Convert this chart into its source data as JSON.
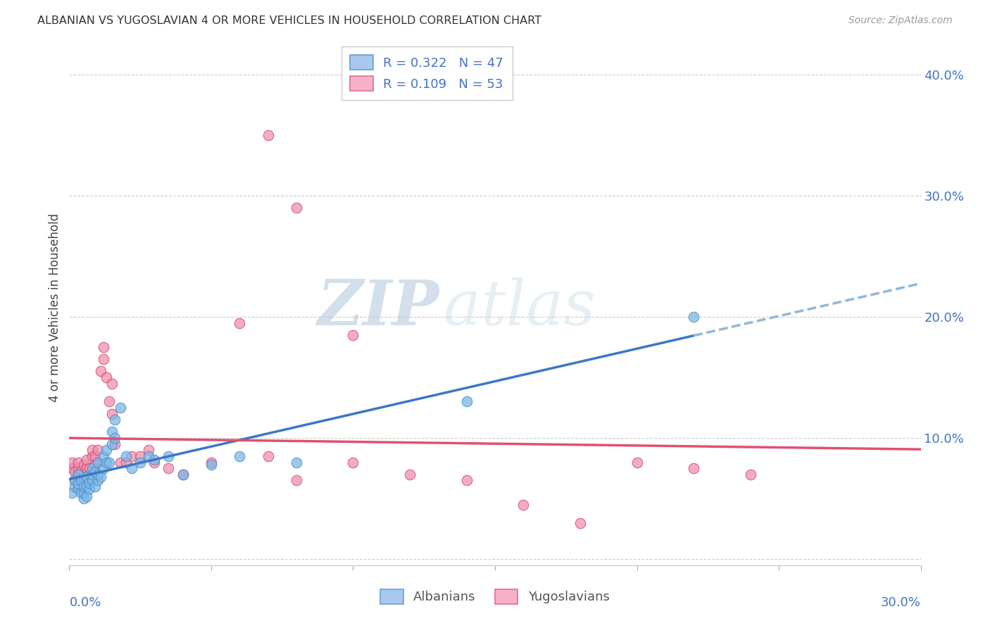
{
  "title": "ALBANIAN VS YUGOSLAVIAN 4 OR MORE VEHICLES IN HOUSEHOLD CORRELATION CHART",
  "source": "Source: ZipAtlas.com",
  "ylabel": "4 or more Vehicles in Household",
  "xlim": [
    0.0,
    0.3
  ],
  "ylim": [
    -0.005,
    0.42
  ],
  "watermark_zip": "ZIP",
  "watermark_atlas": "atlas",
  "albanians_color": "#7ab8e8",
  "albanians_edge": "#4a88c0",
  "yugoslavians_color": "#f090b0",
  "yugoslavians_edge": "#d04060",
  "albanian_line_color": "#3a78c8",
  "yugoslavian_line_color": "#e05070",
  "albanian_dash_color": "#90b8d8",
  "grid_color": "#cccccc",
  "right_tick_color": "#4472c4",
  "albanians_x": [
    0.001,
    0.002,
    0.002,
    0.003,
    0.003,
    0.003,
    0.004,
    0.004,
    0.005,
    0.005,
    0.005,
    0.006,
    0.006,
    0.006,
    0.007,
    0.007,
    0.008,
    0.008,
    0.008,
    0.009,
    0.009,
    0.01,
    0.01,
    0.01,
    0.011,
    0.012,
    0.012,
    0.013,
    0.013,
    0.014,
    0.015,
    0.015,
    0.016,
    0.016,
    0.018,
    0.02,
    0.022,
    0.025,
    0.028,
    0.03,
    0.035,
    0.04,
    0.05,
    0.06,
    0.08,
    0.14,
    0.22
  ],
  "albanians_y": [
    0.055,
    0.06,
    0.065,
    0.058,
    0.062,
    0.07,
    0.055,
    0.065,
    0.05,
    0.055,
    0.06,
    0.052,
    0.06,
    0.068,
    0.058,
    0.063,
    0.065,
    0.07,
    0.075,
    0.06,
    0.072,
    0.065,
    0.07,
    0.08,
    0.068,
    0.075,
    0.085,
    0.08,
    0.09,
    0.08,
    0.095,
    0.105,
    0.1,
    0.115,
    0.125,
    0.085,
    0.075,
    0.08,
    0.085,
    0.082,
    0.085,
    0.07,
    0.078,
    0.085,
    0.08,
    0.13,
    0.2
  ],
  "yugoslavians_x": [
    0.001,
    0.001,
    0.002,
    0.002,
    0.003,
    0.003,
    0.003,
    0.004,
    0.004,
    0.005,
    0.005,
    0.005,
    0.006,
    0.006,
    0.007,
    0.007,
    0.008,
    0.008,
    0.009,
    0.009,
    0.01,
    0.01,
    0.011,
    0.012,
    0.012,
    0.013,
    0.014,
    0.015,
    0.015,
    0.016,
    0.018,
    0.02,
    0.022,
    0.025,
    0.028,
    0.03,
    0.035,
    0.04,
    0.05,
    0.06,
    0.07,
    0.08,
    0.1,
    0.12,
    0.14,
    0.16,
    0.18,
    0.2,
    0.22,
    0.24,
    0.07,
    0.08,
    0.1
  ],
  "yugoslavians_y": [
    0.075,
    0.08,
    0.065,
    0.072,
    0.07,
    0.075,
    0.08,
    0.068,
    0.073,
    0.065,
    0.07,
    0.078,
    0.075,
    0.082,
    0.07,
    0.075,
    0.085,
    0.09,
    0.078,
    0.085,
    0.08,
    0.09,
    0.155,
    0.165,
    0.175,
    0.15,
    0.13,
    0.12,
    0.145,
    0.095,
    0.08,
    0.08,
    0.085,
    0.085,
    0.09,
    0.08,
    0.075,
    0.07,
    0.08,
    0.195,
    0.085,
    0.065,
    0.08,
    0.07,
    0.065,
    0.045,
    0.03,
    0.08,
    0.075,
    0.07,
    0.35,
    0.29,
    0.185
  ]
}
